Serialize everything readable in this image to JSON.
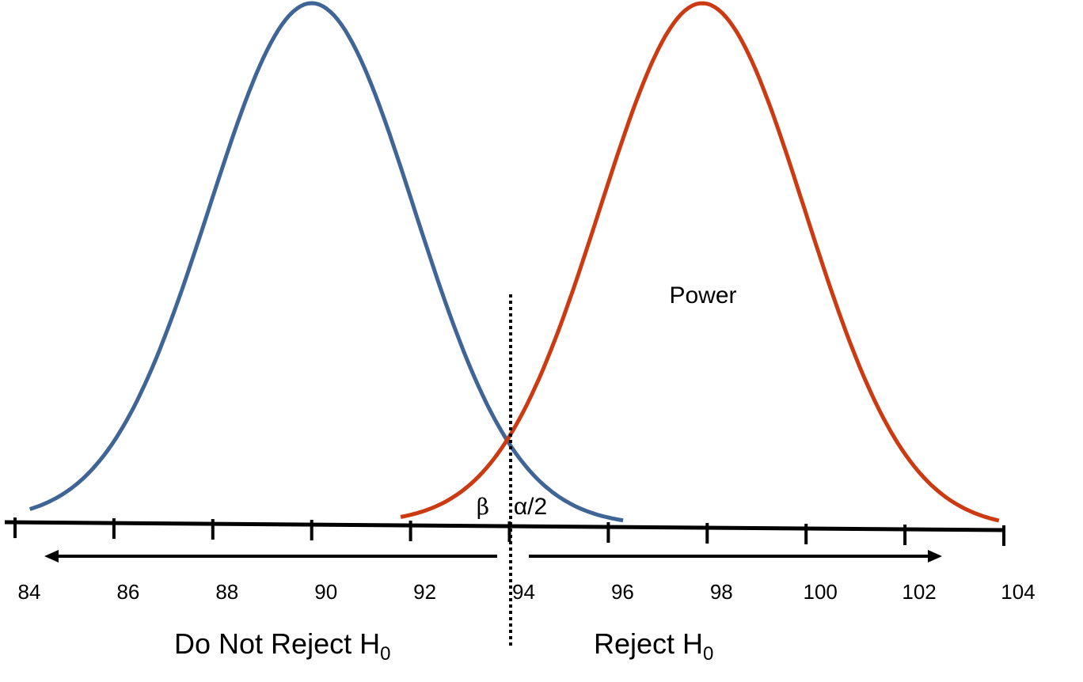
{
  "chart_data": {
    "type": "line",
    "x_ticks": [
      84,
      86,
      88,
      90,
      92,
      94,
      96,
      98,
      100,
      102,
      104
    ],
    "xlim": [
      84,
      104
    ],
    "critical_value": 94,
    "colors": {
      "null": "#3f6597",
      "alternative": "#cc3a12",
      "axis": "#000000"
    },
    "annotations": {
      "power": "Power",
      "beta": "β",
      "alpha_half": "α/2"
    },
    "regions": {
      "left_main": "Do Not Reject H",
      "left_sub": "0",
      "right_main": "Reject H",
      "right_sub": "0"
    }
  }
}
